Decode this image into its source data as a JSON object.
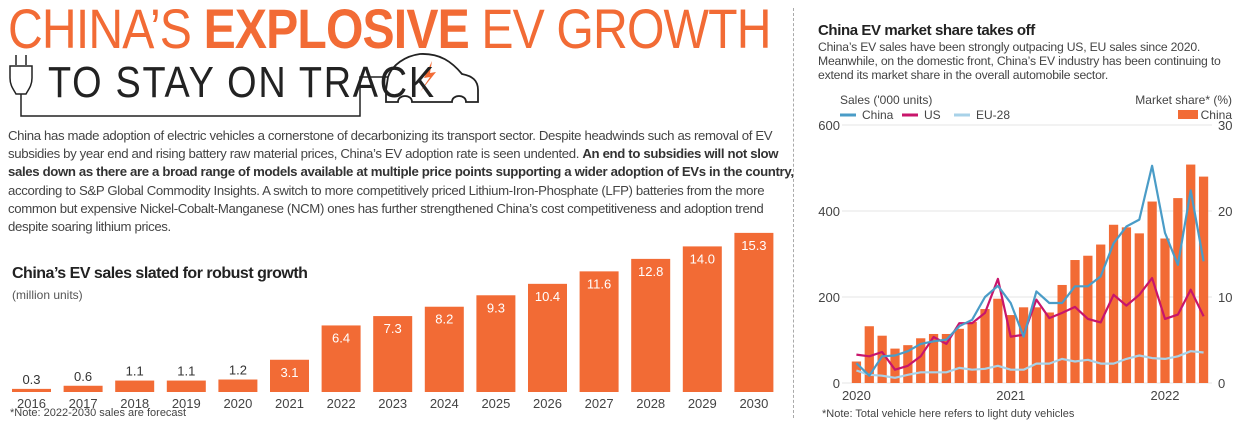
{
  "header": {
    "title_pre": "CHINA’S ",
    "title_bold": "EXPLOSIVE",
    "title_post": " EV GROWTH",
    "subtitle": "TO STAY ON TRACK"
  },
  "intro": {
    "p1": "China has made adoption of electric vehicles a cornerstone of decarbonizing its transport sector. Despite headwinds such as removal of EV subsidies by year end and rising battery raw material prices, China’s EV adoption rate is seen undented. ",
    "bold": "An end to subsidies will not slow sales down as there are a broad range of models available at multiple price points supporting a wider adoption of EVs in the country,",
    "p2": " according to S&P Global Commodity Insights. A switch to more competitively priced Lithium-Iron-Phosphate (LFP) batteries from the more common but expensive Nickel-Cobalt-Manganese (NCM) ones has further strengthened China’s cost competitiveness and adoption trend despite soaring lithium prices."
  },
  "colors": {
    "orange": "#f26b35",
    "china_line": "#4a9cc7",
    "us_line": "#c8156b",
    "eu_line": "#a8d2e8"
  },
  "chart_data": [
    {
      "type": "bar",
      "title": "China’s EV sales slated for robust growth",
      "unit": "(million units)",
      "note": "*Note: 2022-2030 sales are forecast",
      "categories": [
        "2016",
        "2017",
        "2018",
        "2019",
        "2020",
        "2021",
        "2022",
        "2023",
        "2024",
        "2025",
        "2026",
        "2027",
        "2028",
        "2029",
        "2030"
      ],
      "values": [
        0.3,
        0.6,
        1.1,
        1.1,
        1.2,
        3.1,
        6.4,
        7.3,
        8.2,
        9.3,
        10.4,
        11.6,
        12.8,
        14.0,
        15.3
      ],
      "labels": [
        "0.3",
        "0.6",
        "1.1",
        "1.1",
        "1.2",
        "3.1",
        "6.4",
        "7.3",
        "8.2",
        "9.3",
        "10.4",
        "11.6",
        "12.8",
        "14.0",
        "15.3"
      ],
      "color": "#f26b35"
    },
    {
      "type": "bar+line",
      "title": "China EV market share takes off",
      "subtitle": "China’s EV sales have been strongly outpacing US, EU sales since 2020. Meanwhile, on the domestic front, China’s EV industry has been continuing to extend its market share in the overall automobile sector.",
      "note": "*Note: Total vehicle here refers to light duty vehicles",
      "left_axis_label": "Sales ('000 units)",
      "right_axis_label": "Market share* (%)",
      "left_ylim": [
        0,
        600
      ],
      "left_ticks": [
        "0",
        "200",
        "400",
        "600"
      ],
      "right_ylim": [
        0,
        30
      ],
      "right_ticks": [
        "0",
        "10",
        "20",
        "30"
      ],
      "x_ticks": [
        "2020",
        "2021",
        "2022"
      ],
      "grid": true,
      "legend_left": [
        "China",
        "US",
        "EU-28"
      ],
      "legend_right": "China",
      "bars": {
        "name": "China",
        "color": "#f26b35",
        "values": [
          2.5,
          6.6,
          5.5,
          4.0,
          4.4,
          5.2,
          5.7,
          5.7,
          6.3,
          7.1,
          8.6,
          9.8,
          7.9,
          8.8,
          8.8,
          8.2,
          11.4,
          14.3,
          14.8,
          16.1,
          18.4,
          18.1,
          17.4,
          21.1,
          16.8,
          21.5,
          25.4,
          24.0
        ]
      },
      "series": [
        {
          "name": "China",
          "color": "#4a9cc7",
          "values": [
            46,
            17,
            62,
            64,
            74,
            91,
            97,
            101,
            132,
            147,
            200,
            226,
            186,
            108,
            213,
            186,
            186,
            225,
            225,
            248,
            325,
            364,
            380,
            505,
            349,
            275,
            448,
            283
          ]
        },
        {
          "name": "US",
          "color": "#c8156b",
          "values": [
            66,
            62,
            72,
            31,
            40,
            62,
            107,
            91,
            139,
            139,
            163,
            242,
            108,
            112,
            194,
            151,
            163,
            177,
            149,
            141,
            205,
            180,
            205,
            244,
            149,
            159,
            217,
            155
          ]
        },
        {
          "name": "EU-28",
          "color": "#a8d2e8",
          "values": [
            29,
            19,
            17,
            12,
            19,
            25,
            25,
            25,
            35,
            31,
            33,
            40,
            31,
            31,
            45,
            45,
            56,
            50,
            54,
            45,
            45,
            56,
            64,
            58,
            56,
            62,
            74,
            71
          ]
        }
      ]
    }
  ]
}
